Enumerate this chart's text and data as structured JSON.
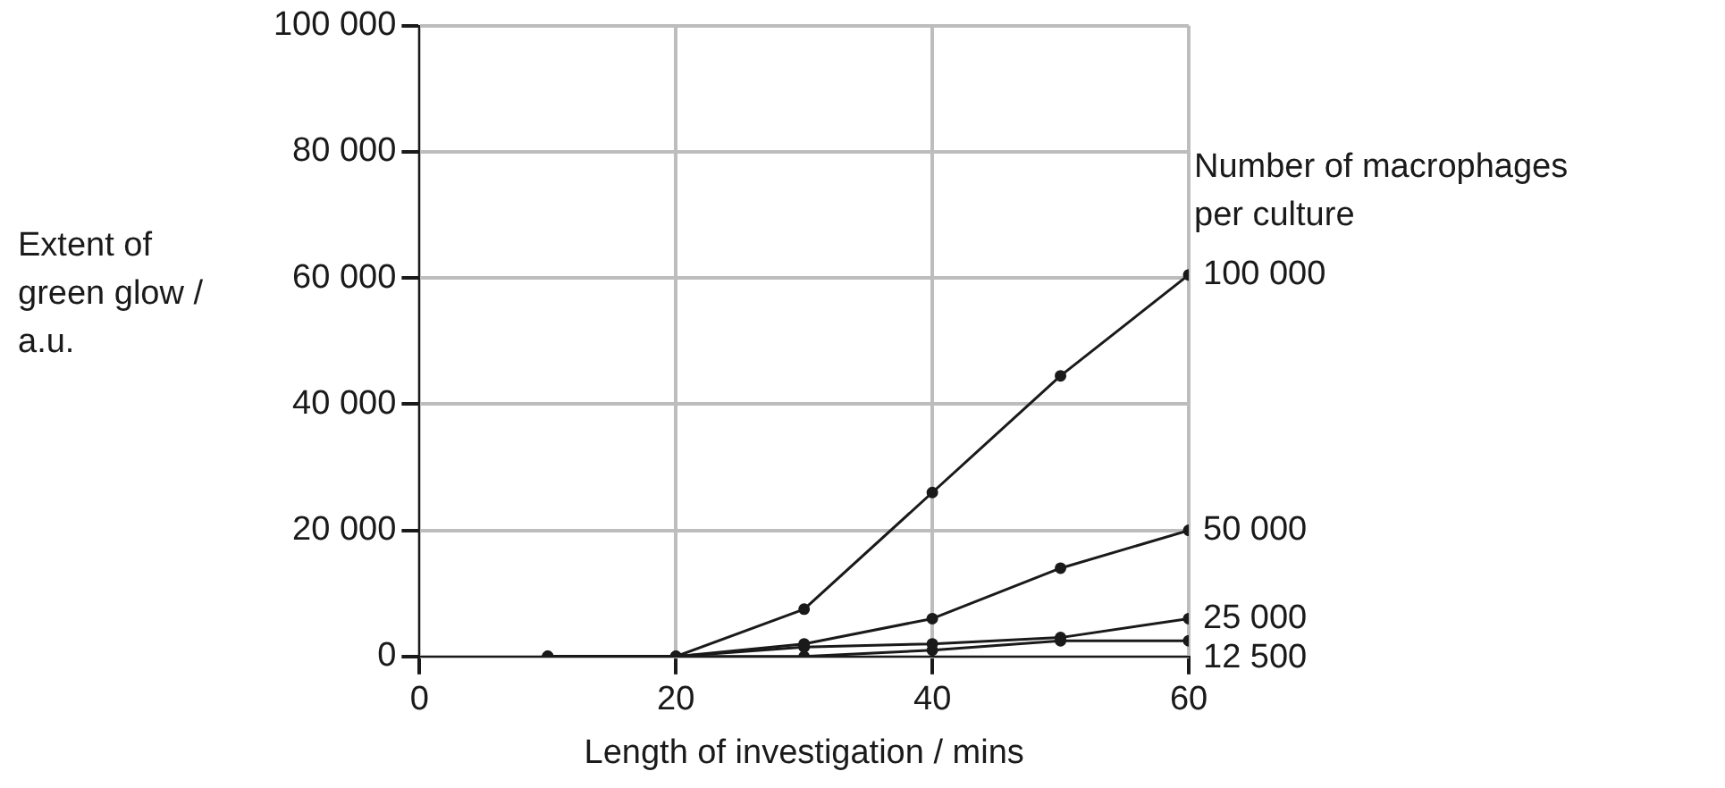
{
  "chart_data": {
    "type": "line",
    "xlabel": "Length of investigation / mins",
    "ylabel": "Extent of green glow / a.u.",
    "legend_title": "Number of macrophages per culture",
    "x": [
      10,
      20,
      30,
      40,
      50,
      60
    ],
    "series": [
      {
        "name": "100 000",
        "color": "#1a1a1a",
        "values": [
          0,
          0,
          7500,
          26000,
          44500,
          60500
        ]
      },
      {
        "name": "50 000",
        "color": "#1a1a1a",
        "values": [
          0,
          0,
          2000,
          6000,
          14000,
          20000
        ]
      },
      {
        "name": "25 000",
        "color": "#1a1a1a",
        "values": [
          0,
          0,
          1500,
          2000,
          3000,
          6000
        ]
      },
      {
        "name": "12 500",
        "color": "#1a1a1a",
        "values": [
          0,
          0,
          0,
          1000,
          2500,
          2500
        ]
      }
    ],
    "xlim": [
      0,
      60
    ],
    "xticks": [
      0,
      20,
      40,
      60
    ],
    "ylim": [
      0,
      100000
    ],
    "yticks": [
      0,
      {
        "value": 20000,
        "label": "20 000"
      },
      {
        "value": 40000,
        "label": "40 000"
      },
      {
        "value": 60000,
        "label": "60 000"
      },
      {
        "value": 80000,
        "label": "80 000"
      },
      {
        "value": 100000,
        "label": "100 000"
      }
    ],
    "grid": true,
    "legend": false,
    "marker": "circle",
    "line_style": "solid"
  }
}
